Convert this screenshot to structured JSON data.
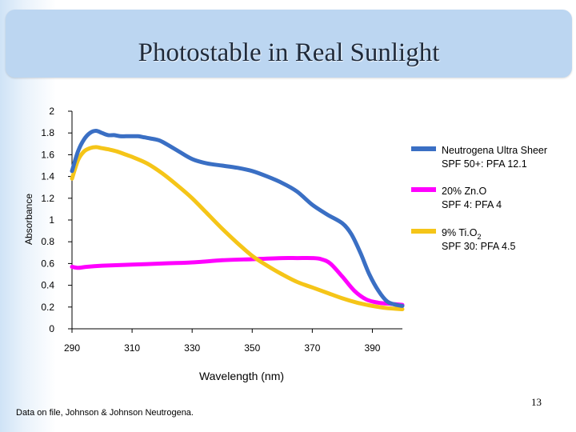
{
  "slide": {
    "title": "Photostable in Real Sunlight",
    "footer": "Data on file, Johnson & Johnson Neutrogena.",
    "page_number": "13"
  },
  "chart_data": {
    "type": "line",
    "title": "",
    "xlabel": "Wavelength (nm)",
    "ylabel": "Absorbance",
    "xlim": [
      290,
      400
    ],
    "ylim": [
      0,
      2
    ],
    "xticks": [
      290,
      310,
      330,
      350,
      370,
      390
    ],
    "yticks": [
      0,
      0.2,
      0.4,
      0.6,
      0.8,
      1,
      1.2,
      1.4,
      1.6,
      1.8,
      2
    ],
    "ytick_labels": [
      "0",
      "0.2",
      "0.4",
      "0.6",
      "0.8",
      "1",
      "1.2",
      "1.4",
      "1.6",
      "1.8",
      "2"
    ],
    "grid": false,
    "legend_position": "right",
    "series": [
      {
        "label_line1": "Neutrogena Ultra Sheer",
        "label_line2": "SPF 50+: PFA 12.1",
        "color": "#3a6fc4",
        "x": [
          290,
          292,
          294,
          296,
          298,
          300,
          302,
          304,
          306,
          308,
          310,
          312,
          314,
          316,
          318,
          320,
          325,
          330,
          335,
          340,
          345,
          350,
          355,
          360,
          365,
          370,
          375,
          380,
          383,
          386,
          389,
          392,
          395,
          398,
          400
        ],
        "y": [
          1.45,
          1.63,
          1.74,
          1.8,
          1.82,
          1.8,
          1.78,
          1.78,
          1.77,
          1.77,
          1.77,
          1.77,
          1.76,
          1.75,
          1.74,
          1.72,
          1.64,
          1.56,
          1.52,
          1.5,
          1.48,
          1.45,
          1.4,
          1.34,
          1.26,
          1.14,
          1.05,
          0.97,
          0.87,
          0.7,
          0.5,
          0.35,
          0.25,
          0.22,
          0.21
        ]
      },
      {
        "label_line1": "20% Zn.O",
        "label_line2": "SPF 4: PFA 4",
        "color": "#ff00ff",
        "x": [
          290,
          292,
          295,
          300,
          310,
          320,
          330,
          340,
          350,
          360,
          365,
          370,
          373,
          376,
          380,
          384,
          388,
          392,
          396,
          400
        ],
        "y": [
          0.57,
          0.56,
          0.57,
          0.58,
          0.59,
          0.6,
          0.61,
          0.63,
          0.64,
          0.65,
          0.65,
          0.65,
          0.64,
          0.6,
          0.48,
          0.35,
          0.27,
          0.24,
          0.23,
          0.22
        ]
      },
      {
        "label_line1": "9% Ti.O",
        "label_sub": "2",
        "label_line2": "SPF 30: PFA 4.5",
        "color": "#f5c518",
        "x": [
          290,
          292,
          294,
          296,
          298,
          300,
          302,
          305,
          308,
          310,
          315,
          320,
          325,
          330,
          335,
          340,
          345,
          350,
          355,
          360,
          365,
          370,
          375,
          380,
          385,
          390,
          395,
          400
        ],
        "y": [
          1.38,
          1.55,
          1.63,
          1.66,
          1.67,
          1.66,
          1.65,
          1.63,
          1.6,
          1.58,
          1.52,
          1.43,
          1.32,
          1.2,
          1.06,
          0.92,
          0.79,
          0.67,
          0.58,
          0.5,
          0.43,
          0.38,
          0.33,
          0.28,
          0.24,
          0.21,
          0.19,
          0.18
        ]
      }
    ]
  }
}
